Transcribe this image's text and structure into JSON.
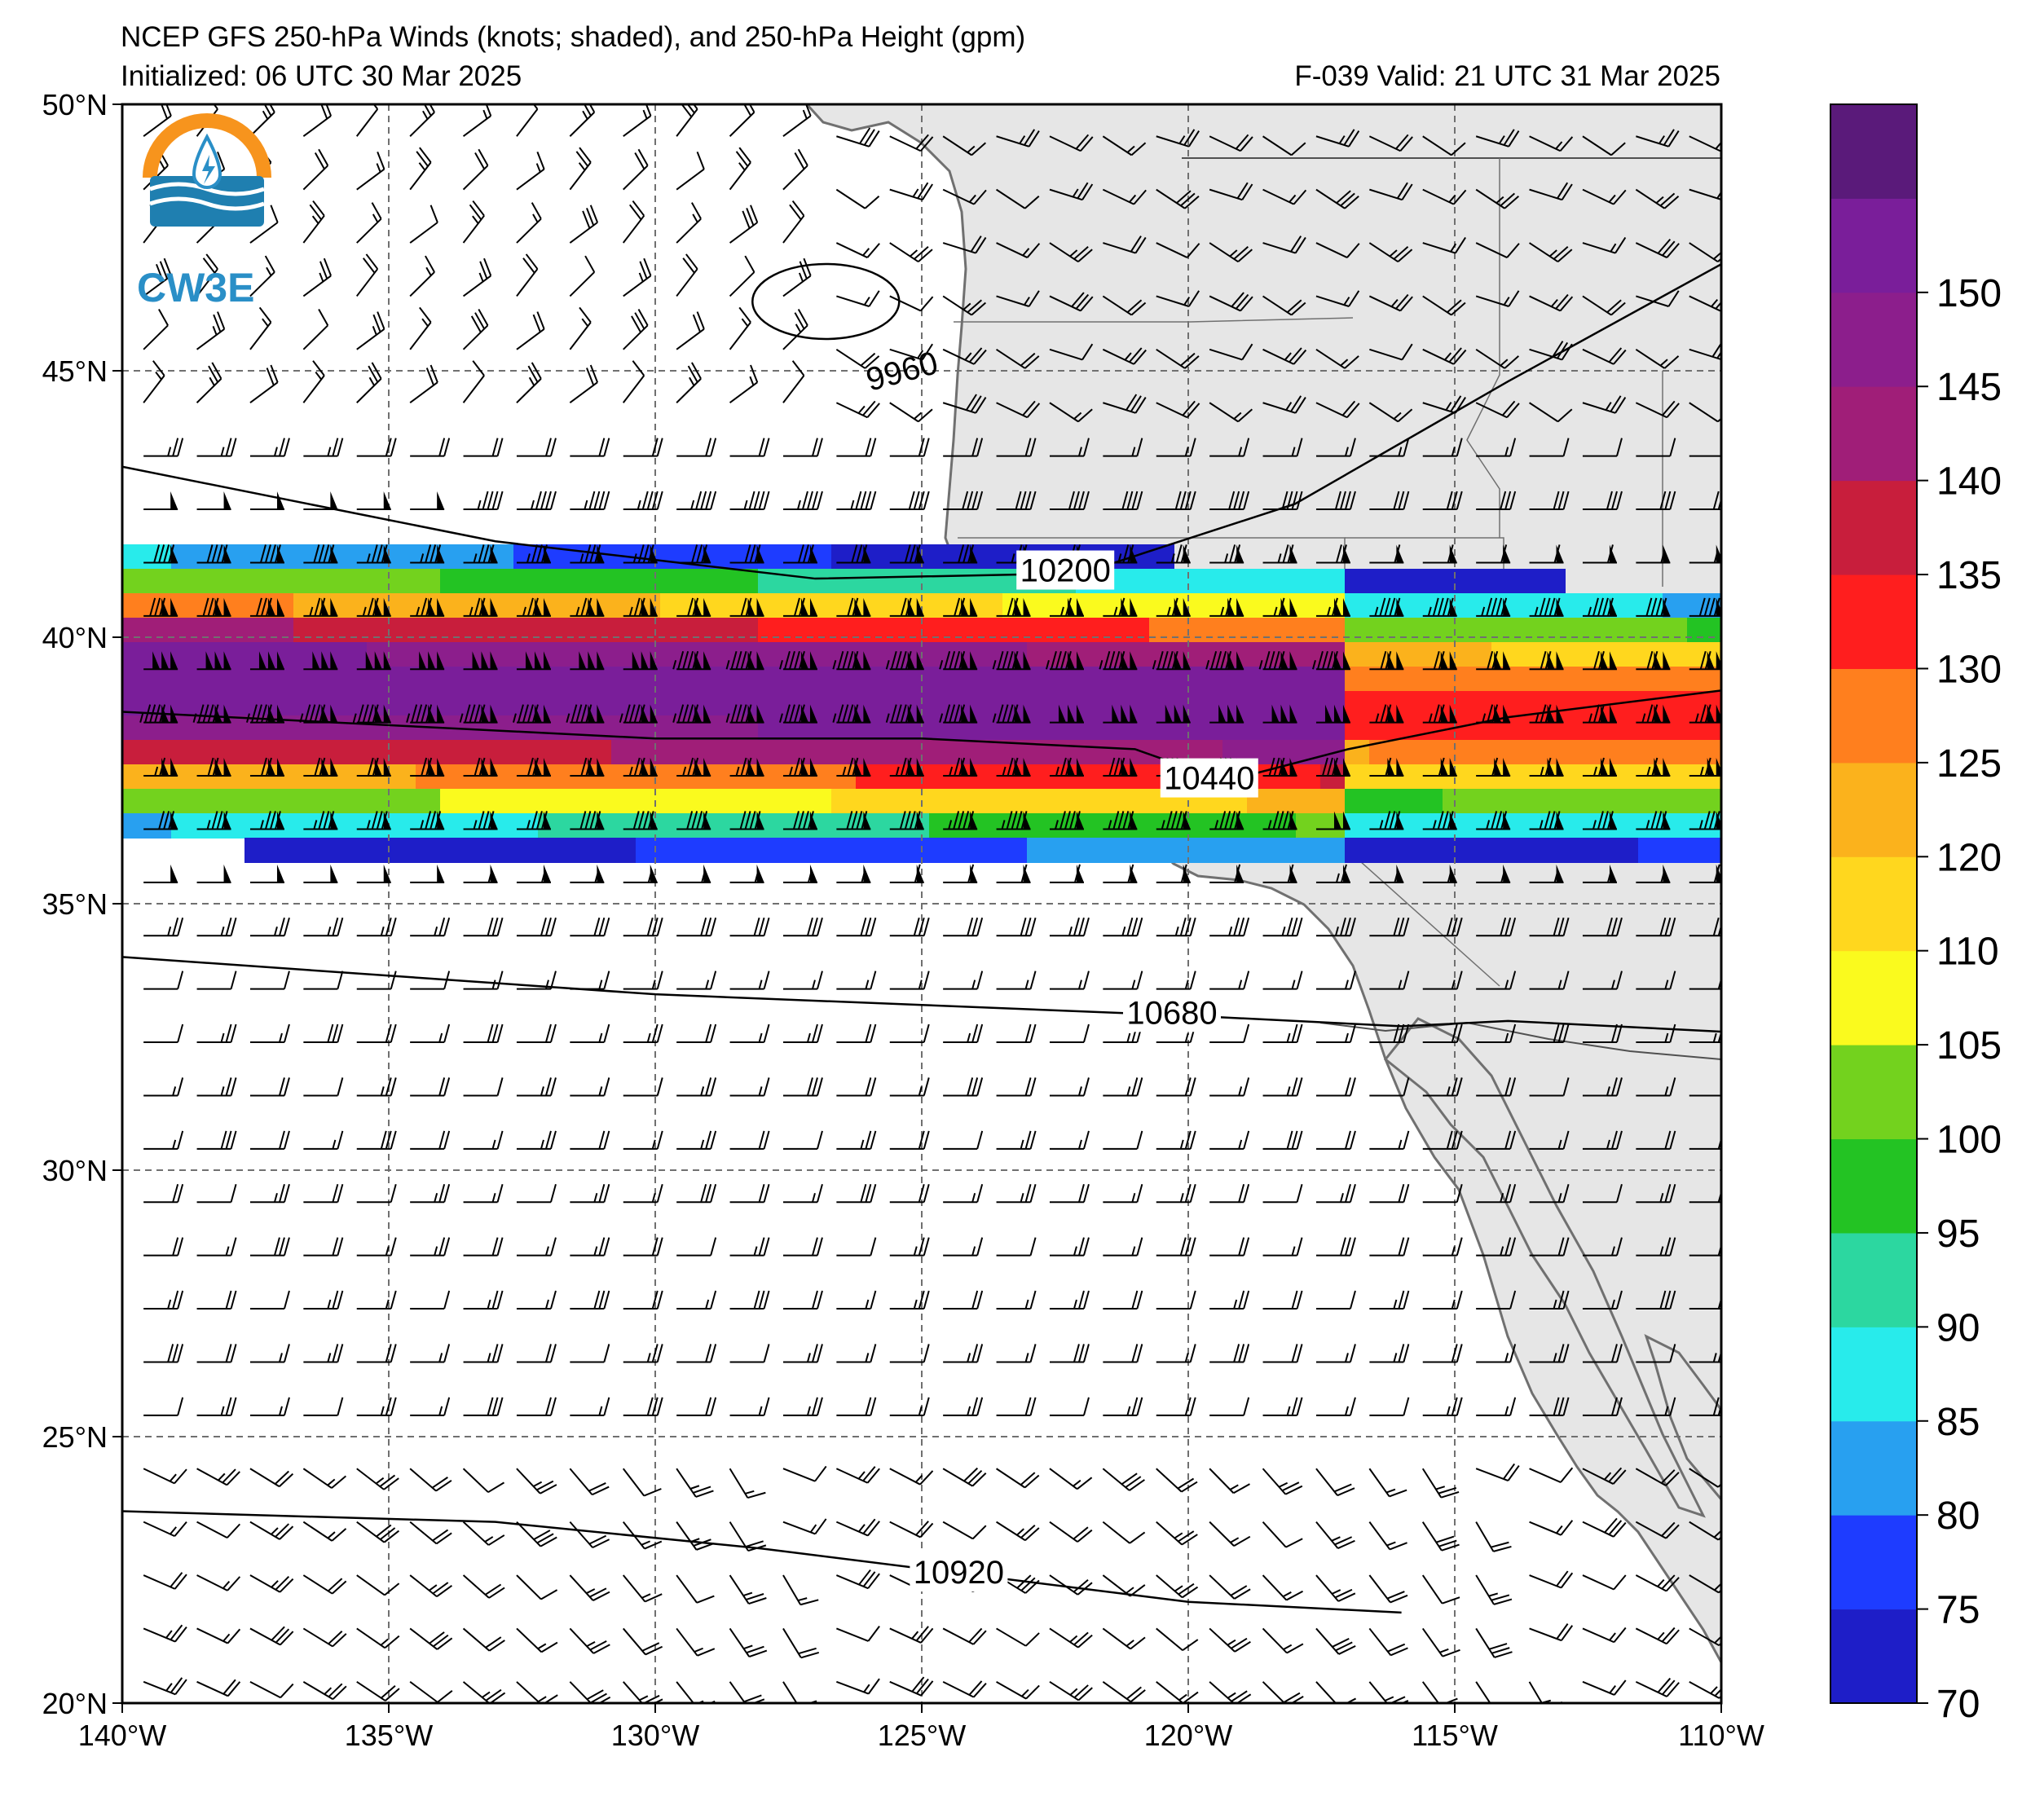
{
  "header": {
    "title": "NCEP GFS 250-hPa Winds (knots; shaded), and 250-hPa Height (gpm)",
    "initialized": "Initialized: 06 UTC 30 Mar 2025",
    "valid": "F-039  Valid: 21 UTC 31 Mar 2025"
  },
  "logo": {
    "text": "CW3E"
  },
  "map": {
    "projection": "lat-lon",
    "lon_range": [
      -140,
      -110
    ],
    "lat_range": [
      20,
      50
    ],
    "grid": "dashed",
    "land_color": "#e6e6e6",
    "lon_ticks": [
      "140°W",
      "135°W",
      "130°W",
      "125°W",
      "120°W",
      "115°W",
      "110°W"
    ],
    "lat_ticks": [
      "50°N",
      "45°N",
      "40°N",
      "35°N",
      "30°N",
      "25°N",
      "20°N"
    ]
  },
  "height_contours": [
    {
      "label": "9960",
      "shape": "closed low",
      "center": [
        -126.8,
        46.3
      ]
    },
    {
      "label": "10200",
      "points": [
        [
          -140,
          43.2
        ],
        [
          -133,
          41.8
        ],
        [
          -127,
          41.1
        ],
        [
          -122,
          41.2
        ],
        [
          -118,
          42.5
        ],
        [
          -114,
          44.8
        ],
        [
          -110,
          47.0
        ]
      ]
    },
    {
      "label": "10440",
      "points": [
        [
          -140,
          38.6
        ],
        [
          -130,
          38.1
        ],
        [
          -125,
          38.1
        ],
        [
          -121,
          37.9
        ],
        [
          -119.3,
          37.3
        ],
        [
          -117,
          37.9
        ],
        [
          -114,
          38.5
        ],
        [
          -110,
          39.0
        ]
      ]
    },
    {
      "label": "10680",
      "points": [
        [
          -140,
          34.0
        ],
        [
          -130,
          33.3
        ],
        [
          -125,
          33.1
        ],
        [
          -120,
          32.9
        ],
        [
          -116,
          32.7
        ],
        [
          -114,
          32.8
        ],
        [
          -110,
          32.6
        ]
      ]
    },
    {
      "label": "10920",
      "points": [
        [
          -140,
          23.6
        ],
        [
          -133,
          23.4
        ],
        [
          -128,
          22.9
        ],
        [
          -124,
          22.4
        ],
        [
          -120,
          21.9
        ],
        [
          -116,
          21.7
        ]
      ]
    }
  ],
  "colorbar": {
    "units": "knots",
    "ticks": [
      "70",
      "75",
      "80",
      "85",
      "90",
      "95",
      "100",
      "105",
      "110",
      "120",
      "125",
      "130",
      "135",
      "140",
      "145",
      "150"
    ],
    "levels": [
      70,
      75,
      80,
      85,
      90,
      95,
      100,
      105,
      110,
      115,
      120,
      125,
      130,
      135,
      140,
      145,
      150,
      155
    ],
    "colors": [
      "#1e1ec8",
      "#1e3cff",
      "#28a0f0",
      "#28ebeb",
      "#2cd7a0",
      "#23c323",
      "#73d21e",
      "#fafa1e",
      "#ffd71e",
      "#fbb21c",
      "#ff7f1e",
      "#ff1e1e",
      "#c81e3c",
      "#a01e78",
      "#8c1e8c",
      "#7a1e9a",
      "#5a1a7a"
    ]
  },
  "wind_speed_field": {
    "units": "knots",
    "shape": "zonal jet streak",
    "core_speed": 150,
    "core_lat_west": 39.2,
    "core_lat_east": 38.6,
    "exit_lon": -117
  }
}
